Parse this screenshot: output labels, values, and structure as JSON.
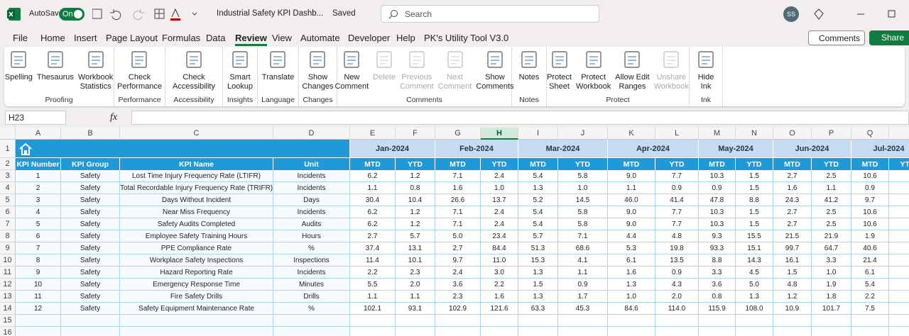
{
  "title_bar": {
    "autosave_label": "AutoSave",
    "autosave_state": "On",
    "file_name": "Industrial Safety KPI Dashb...",
    "save_status": "Saved",
    "search_placeholder": "Search",
    "user_initials": "SS"
  },
  "menu": {
    "tabs": [
      "File",
      "Home",
      "Insert",
      "Page Layout",
      "Formulas",
      "Data",
      "Review",
      "View",
      "Automate",
      "Developer",
      "Help",
      "PK's Utility Tool V3.0"
    ],
    "active_tab": 6,
    "comments_button": "Comments",
    "share_button": "Share"
  },
  "ribbon": {
    "groups": [
      {
        "label": "Proofing",
        "buttons": [
          {
            "lines": [
              "Spelling"
            ]
          },
          {
            "lines": [
              "Thesaurus"
            ]
          },
          {
            "lines": [
              "Workbook",
              "Statistics"
            ]
          }
        ]
      },
      {
        "label": "Performance",
        "buttons": [
          {
            "lines": [
              "Check",
              "Performance"
            ]
          }
        ]
      },
      {
        "label": "Accessibility",
        "buttons": [
          {
            "lines": [
              "Check",
              "Accessibility"
            ]
          }
        ]
      },
      {
        "label": "Insights",
        "buttons": [
          {
            "lines": [
              "Smart",
              "Lookup"
            ]
          }
        ]
      },
      {
        "label": "Language",
        "buttons": [
          {
            "lines": [
              "Translate"
            ]
          }
        ]
      },
      {
        "label": "Changes",
        "buttons": [
          {
            "lines": [
              "Show",
              "Changes"
            ]
          }
        ]
      },
      {
        "label": "Comments",
        "buttons": [
          {
            "lines": [
              "New",
              "Comment"
            ]
          },
          {
            "lines": [
              "Delete"
            ],
            "disabled": true
          },
          {
            "lines": [
              "Previous",
              "Comment"
            ],
            "disabled": true
          },
          {
            "lines": [
              "Next",
              "Comment"
            ],
            "disabled": true
          },
          {
            "lines": [
              "Show",
              "Comments"
            ]
          }
        ]
      },
      {
        "label": "Notes",
        "buttons": [
          {
            "lines": [
              "Notes"
            ]
          }
        ]
      },
      {
        "label": "Protect",
        "buttons": [
          {
            "lines": [
              "Protect",
              "Sheet"
            ]
          },
          {
            "lines": [
              "Protect",
              "Workbook"
            ]
          },
          {
            "lines": [
              "Allow Edit",
              "Ranges"
            ]
          },
          {
            "lines": [
              "Unshare",
              "Workbook"
            ],
            "disabled": true
          }
        ]
      },
      {
        "label": "Ink",
        "buttons": [
          {
            "lines": [
              "Hide",
              "Ink"
            ]
          }
        ]
      }
    ]
  },
  "formula_bar": {
    "name_box": "H23",
    "function_symbol": "fx"
  },
  "sheet": {
    "column_letters": [
      "A",
      "B",
      "C",
      "D",
      "E",
      "F",
      "G",
      "H",
      "I",
      "J",
      "K",
      "L",
      "M",
      "N",
      "O",
      "P",
      "Q"
    ],
    "row_numbers": [
      "1",
      "2",
      "3",
      "4",
      "5",
      "6",
      "7",
      "8",
      "9",
      "10",
      "11",
      "12",
      "13",
      "14",
      "15",
      "16"
    ],
    "months": [
      "Jan-2024",
      "Feb-2024",
      "Mar-2024",
      "Apr-2024",
      "May-2024",
      "Jun-2024",
      "Jul-2024"
    ],
    "header": [
      "KPI Number",
      "KPI Group",
      "KPI Name",
      "Unit"
    ],
    "period_labels": [
      "MTD",
      "YTD"
    ],
    "rows": [
      [
        "1",
        "Safety",
        "Lost Time Injury Frequency Rate (LTIFR)",
        "Incidents",
        "6.2",
        "1.2",
        "7.1",
        "2.4",
        "5.4",
        "5.8",
        "9.0",
        "7.7",
        "10.3",
        "1.5",
        "2.7",
        "2.5",
        "10.6"
      ],
      [
        "2",
        "Safety",
        "Total Recordable Injury Frequency Rate (TRIFR)",
        "Incidents",
        "1.1",
        "0.8",
        "1.6",
        "1.0",
        "1.3",
        "1.0",
        "1.1",
        "0.9",
        "0.9",
        "1.5",
        "1.6",
        "1.1",
        "0.9"
      ],
      [
        "3",
        "Safety",
        "Days Without Incident",
        "Days",
        "30.4",
        "10.4",
        "26.6",
        "13.7",
        "5.2",
        "14.5",
        "46.0",
        "41.4",
        "47.8",
        "8.8",
        "24.3",
        "41.2",
        "9.7"
      ],
      [
        "4",
        "Safety",
        "Near Miss Frequency",
        "Incidents",
        "6.2",
        "1.2",
        "7.1",
        "2.4",
        "5.4",
        "5.8",
        "9.0",
        "7.7",
        "10.3",
        "1.5",
        "2.7",
        "2.5",
        "10.6"
      ],
      [
        "5",
        "Safety",
        "Safety Audits Completed",
        "Audits",
        "6.2",
        "1.2",
        "7.1",
        "2.4",
        "5.4",
        "5.8",
        "9.0",
        "7.7",
        "10.3",
        "1.5",
        "2.7",
        "2.5",
        "10.6"
      ],
      [
        "6",
        "Safety",
        "Employee Safety Training Hours",
        "Hours",
        "2.7",
        "5.7",
        "5.0",
        "23.4",
        "5.7",
        "7.1",
        "4.4",
        "4.8",
        "9.3",
        "15.5",
        "21.5",
        "21.9",
        "1.9"
      ],
      [
        "7",
        "Safety",
        "PPE Compliance Rate",
        "%",
        "37.4",
        "13.1",
        "2.7",
        "84.4",
        "51.3",
        "68.6",
        "5.3",
        "19.8",
        "93.3",
        "15.1",
        "99.7",
        "64.7",
        "40.6"
      ],
      [
        "8",
        "Safety",
        "Workplace Safety Inspections",
        "Inspections",
        "11.4",
        "10.1",
        "9.7",
        "11.0",
        "15.3",
        "4.1",
        "6.1",
        "13.5",
        "8.8",
        "14.3",
        "16.1",
        "3.3",
        "21.4"
      ],
      [
        "9",
        "Safety",
        "Hazard Reporting Rate",
        "Incidents",
        "2.2",
        "2.3",
        "2.4",
        "3.0",
        "1.3",
        "1.1",
        "1.6",
        "0.9",
        "3.3",
        "4.5",
        "1.5",
        "1.0",
        "6.1"
      ],
      [
        "10",
        "Safety",
        "Emergency Response Time",
        "Minutes",
        "5.5",
        "2.0",
        "3.6",
        "2.2",
        "1.5",
        "0.9",
        "1.3",
        "4.3",
        "3.6",
        "5.0",
        "4.8",
        "1.9",
        "5.4"
      ],
      [
        "11",
        "Safety",
        "Fire Safety Drills",
        "Drills",
        "1.1",
        "1.1",
        "2.3",
        "1.6",
        "1.3",
        "1.7",
        "1.0",
        "2.0",
        "0.8",
        "1.3",
        "1.2",
        "1.8",
        "2.2"
      ],
      [
        "12",
        "Safety",
        "Safety Equipment Maintenance Rate",
        "%",
        "102.1",
        "93.1",
        "102.9",
        "121.6",
        "63.3",
        "45.3",
        "84.6",
        "114.0",
        "115.9",
        "108.0",
        "10.9",
        "101.7",
        "7.5"
      ]
    ]
  }
}
